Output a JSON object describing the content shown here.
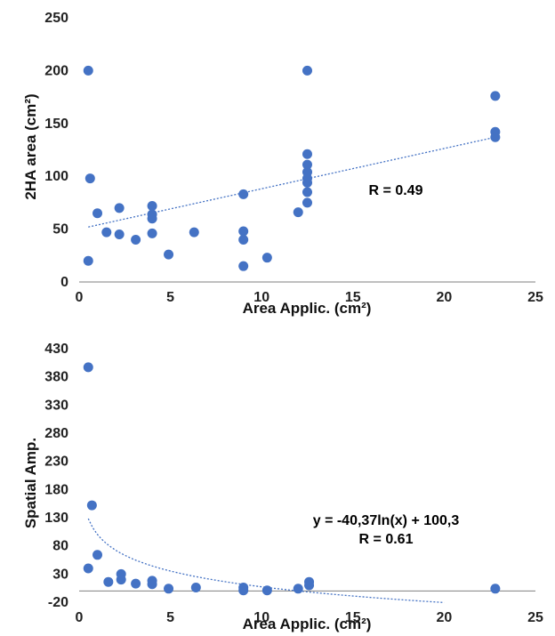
{
  "chart_data": [
    {
      "type": "scatter",
      "xlabel": "Area Applic. (cm²)",
      "ylabel": "2HA area (cm²)",
      "xlim": [
        0,
        25
      ],
      "ylim": [
        0,
        250
      ],
      "xticks": [
        0,
        5,
        10,
        15,
        20,
        25
      ],
      "yticks": [
        0,
        50,
        100,
        150,
        200,
        250
      ],
      "x_tick_labels": [
        "0",
        "5",
        "10",
        "15",
        "20",
        "25"
      ],
      "y_tick_labels": [
        "0",
        "50",
        "100",
        "150",
        "200",
        "250"
      ],
      "grid": false,
      "point_color": "#4472C4",
      "points": [
        {
          "x": 0.5,
          "y": 200
        },
        {
          "x": 0.5,
          "y": 20
        },
        {
          "x": 0.6,
          "y": 98
        },
        {
          "x": 1.0,
          "y": 65
        },
        {
          "x": 1.5,
          "y": 47
        },
        {
          "x": 2.2,
          "y": 70
        },
        {
          "x": 2.2,
          "y": 45
        },
        {
          "x": 3.1,
          "y": 40
        },
        {
          "x": 4.0,
          "y": 72
        },
        {
          "x": 4.0,
          "y": 64
        },
        {
          "x": 4.0,
          "y": 60
        },
        {
          "x": 4.0,
          "y": 46
        },
        {
          "x": 4.9,
          "y": 26
        },
        {
          "x": 6.3,
          "y": 47
        },
        {
          "x": 9.0,
          "y": 83
        },
        {
          "x": 9.0,
          "y": 48
        },
        {
          "x": 9.0,
          "y": 40
        },
        {
          "x": 9.0,
          "y": 15
        },
        {
          "x": 10.3,
          "y": 23
        },
        {
          "x": 12.0,
          "y": 66
        },
        {
          "x": 12.5,
          "y": 200
        },
        {
          "x": 12.5,
          "y": 121
        },
        {
          "x": 12.5,
          "y": 111
        },
        {
          "x": 12.5,
          "y": 104
        },
        {
          "x": 12.5,
          "y": 98
        },
        {
          "x": 12.5,
          "y": 94
        },
        {
          "x": 12.5,
          "y": 85
        },
        {
          "x": 12.5,
          "y": 75
        },
        {
          "x": 22.8,
          "y": 176
        },
        {
          "x": 22.8,
          "y": 142
        },
        {
          "x": 22.8,
          "y": 137
        }
      ],
      "trendline": {
        "type": "linear",
        "x_range": [
          0.5,
          22.8
        ],
        "y_start": 52,
        "y_end": 137,
        "style": "dotted"
      },
      "annotations": [
        "R = 0.49"
      ]
    },
    {
      "type": "scatter",
      "xlabel": "Area Applic. (cm²)",
      "ylabel": "Spatial Amp.",
      "xlim": [
        0,
        25
      ],
      "ylim": [
        -20,
        430
      ],
      "xticks": [
        0,
        5,
        10,
        15,
        20,
        25
      ],
      "yticks": [
        -20,
        30,
        80,
        130,
        180,
        230,
        280,
        330,
        380,
        430
      ],
      "x_tick_labels": [
        "0",
        "5",
        "10",
        "15",
        "20",
        "25"
      ],
      "y_tick_labels": [
        "-20",
        "30",
        "80",
        "130",
        "180",
        "230",
        "280",
        "330",
        "380",
        "430"
      ],
      "grid": false,
      "point_color": "#4472C4",
      "points": [
        {
          "x": 0.5,
          "y": 397
        },
        {
          "x": 0.7,
          "y": 152
        },
        {
          "x": 1.0,
          "y": 64
        },
        {
          "x": 0.5,
          "y": 40
        },
        {
          "x": 1.6,
          "y": 16
        },
        {
          "x": 2.3,
          "y": 30
        },
        {
          "x": 2.3,
          "y": 20
        },
        {
          "x": 3.1,
          "y": 13
        },
        {
          "x": 4.0,
          "y": 18
        },
        {
          "x": 4.0,
          "y": 12
        },
        {
          "x": 4.9,
          "y": 4
        },
        {
          "x": 6.4,
          "y": 6
        },
        {
          "x": 9.0,
          "y": 6
        },
        {
          "x": 9.0,
          "y": 1
        },
        {
          "x": 10.3,
          "y": 1
        },
        {
          "x": 12.0,
          "y": 4
        },
        {
          "x": 12.6,
          "y": 16
        },
        {
          "x": 12.6,
          "y": 10
        },
        {
          "x": 22.8,
          "y": 4
        }
      ],
      "trendline": {
        "type": "logarithmic",
        "a": -40.37,
        "b": 100.3,
        "x_range": [
          0.5,
          20.0
        ],
        "style": "dotted"
      },
      "annotations": [
        "y = -40,37ln(x) + 100,3",
        "R = 0.61"
      ]
    }
  ]
}
